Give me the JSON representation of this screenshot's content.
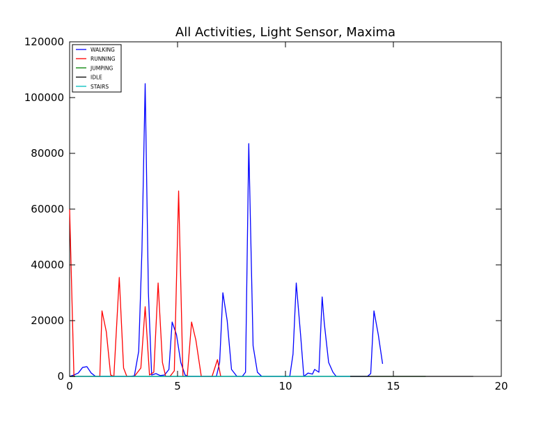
{
  "chart_data": {
    "type": "line",
    "title": "All Activities, Light Sensor, Maxima",
    "xlabel": "",
    "ylabel": "",
    "xlim": [
      0,
      20
    ],
    "ylim": [
      0,
      120000
    ],
    "x_ticks": [
      "0",
      "5",
      "10",
      "15",
      "20"
    ],
    "y_ticks": [
      "0",
      "20000",
      "40000",
      "60000",
      "80000",
      "100000",
      "120000"
    ],
    "grid": false,
    "legend_position": "top-left",
    "series": [
      {
        "name": "WALKING",
        "color": "#0000ff",
        "points": [
          [
            0.0,
            0
          ],
          [
            0.2,
            500
          ],
          [
            0.4,
            1200
          ],
          [
            0.6,
            3200
          ],
          [
            0.8,
            3500
          ],
          [
            1.0,
            1200
          ],
          [
            1.2,
            0
          ],
          [
            1.4,
            0
          ],
          [
            2.8,
            0
          ],
          [
            3.0,
            200
          ],
          [
            3.2,
            9000
          ],
          [
            3.35,
            45000
          ],
          [
            3.5,
            105000
          ],
          [
            3.65,
            30000
          ],
          [
            3.8,
            500
          ],
          [
            4.0,
            1000
          ],
          [
            4.2,
            300
          ],
          [
            4.4,
            500
          ],
          [
            4.6,
            2500
          ],
          [
            4.75,
            19500
          ],
          [
            4.95,
            15000
          ],
          [
            5.15,
            5000
          ],
          [
            5.35,
            500
          ],
          [
            5.5,
            0
          ],
          [
            6.8,
            0
          ],
          [
            6.95,
            5000
          ],
          [
            7.1,
            30000
          ],
          [
            7.3,
            20000
          ],
          [
            7.5,
            2500
          ],
          [
            7.75,
            0
          ],
          [
            8.0,
            0
          ],
          [
            8.15,
            1500
          ],
          [
            8.3,
            83500
          ],
          [
            8.5,
            11000
          ],
          [
            8.7,
            1500
          ],
          [
            8.9,
            0
          ],
          [
            10.2,
            0
          ],
          [
            10.35,
            8000
          ],
          [
            10.5,
            33500
          ],
          [
            10.7,
            15000
          ],
          [
            10.85,
            0
          ],
          [
            11.05,
            1200
          ],
          [
            11.25,
            800
          ],
          [
            11.35,
            2500
          ],
          [
            11.55,
            1500
          ],
          [
            11.7,
            28500
          ],
          [
            11.8,
            19000
          ],
          [
            12.0,
            5000
          ],
          [
            12.2,
            1500
          ],
          [
            12.35,
            0
          ],
          [
            13.8,
            0
          ],
          [
            13.95,
            1000
          ],
          [
            14.1,
            23500
          ],
          [
            14.3,
            15000
          ],
          [
            14.5,
            4500
          ]
        ]
      },
      {
        "name": "RUNNING",
        "color": "#ff0000",
        "points": [
          [
            0.0,
            60000
          ],
          [
            0.2,
            0
          ],
          [
            1.4,
            0
          ],
          [
            1.5,
            23500
          ],
          [
            1.7,
            16000
          ],
          [
            1.9,
            500
          ],
          [
            2.05,
            0
          ],
          [
            2.3,
            35500
          ],
          [
            2.5,
            3000
          ],
          [
            2.65,
            0
          ],
          [
            3.0,
            0
          ],
          [
            3.3,
            3000
          ],
          [
            3.5,
            25000
          ],
          [
            3.7,
            500
          ],
          [
            3.9,
            1500
          ],
          [
            4.1,
            33500
          ],
          [
            4.3,
            5000
          ],
          [
            4.45,
            0
          ],
          [
            4.65,
            0
          ],
          [
            4.85,
            2000
          ],
          [
            5.05,
            66500
          ],
          [
            5.25,
            0
          ],
          [
            5.45,
            0
          ],
          [
            5.65,
            19500
          ],
          [
            5.85,
            13000
          ],
          [
            6.1,
            0
          ],
          [
            6.6,
            0
          ],
          [
            6.85,
            6000
          ],
          [
            7.0,
            0
          ]
        ]
      },
      {
        "name": "JUMPING",
        "color": "#008000",
        "points": [
          [
            0.0,
            0
          ],
          [
            16.5,
            0
          ]
        ]
      },
      {
        "name": "IDLE",
        "color": "#000000",
        "points": [
          [
            0.0,
            0
          ],
          [
            18.7,
            0
          ]
        ]
      },
      {
        "name": "STAIRS",
        "color": "#00bfbf",
        "points": [
          [
            0.0,
            0
          ],
          [
            13.0,
            0
          ]
        ]
      }
    ]
  }
}
